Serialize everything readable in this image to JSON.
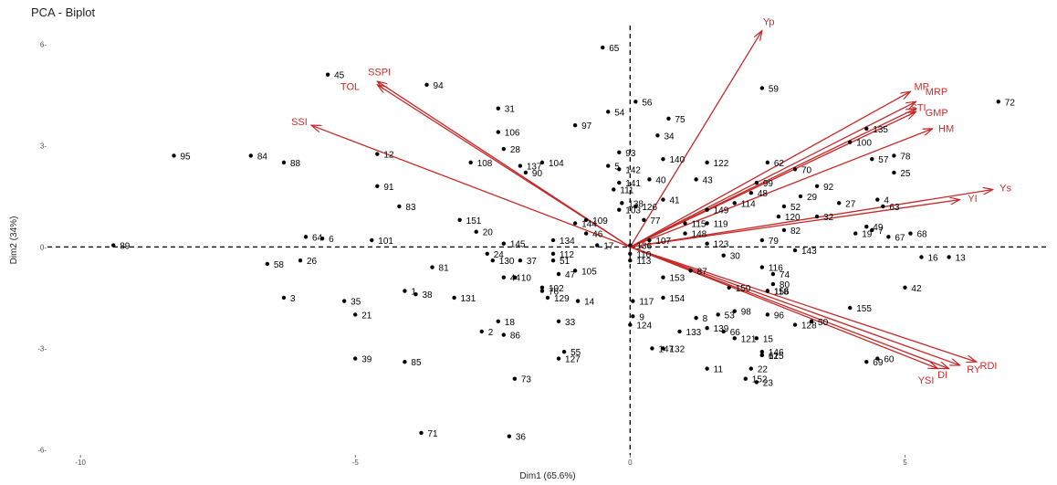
{
  "chart_data": {
    "type": "scatter",
    "title": "PCA - Biplot",
    "xlabel": "Dim1 (65.6%)",
    "ylabel": "Dim2 (34%)",
    "xlim": [
      -10.6,
      7.6
    ],
    "ylim": [
      -6.15,
      6.55
    ],
    "xticks": [
      -10,
      -5,
      0,
      5
    ],
    "yticks": [
      -6,
      -3,
      0,
      3,
      6
    ],
    "tick_labels": {
      "x": [
        "-10",
        "-5",
        "0",
        "5"
      ],
      "y": [
        "-6-",
        "-3-",
        "0-",
        "3-",
        "6-"
      ]
    },
    "grid": "none",
    "reference_lines": {
      "x": 0,
      "y": 0,
      "style": "dashed"
    },
    "colors": {
      "points": "#000000",
      "vectors": "#c62828",
      "vector_labels": "#cc2b2b"
    },
    "points": [
      {
        "label": "1",
        "x": -4.1,
        "y": -1.3
      },
      {
        "label": "2",
        "x": -2.7,
        "y": -2.5
      },
      {
        "label": "3",
        "x": -6.3,
        "y": -1.5
      },
      {
        "label": "4",
        "x": 4.5,
        "y": 1.4
      },
      {
        "label": "5",
        "x": -0.4,
        "y": 2.4
      },
      {
        "label": "6",
        "x": -5.6,
        "y": 0.25
      },
      {
        "label": "7",
        "x": 4.4,
        "y": 0.5
      },
      {
        "label": "8",
        "x": 1.2,
        "y": -2.1
      },
      {
        "label": "9",
        "x": 0.05,
        "y": -2.05
      },
      {
        "label": "10",
        "x": -2.1,
        "y": -0.9
      },
      {
        "label": "11",
        "x": 1.4,
        "y": -3.6
      },
      {
        "label": "12",
        "x": -4.6,
        "y": 2.75
      },
      {
        "label": "13",
        "x": 5.8,
        "y": -0.3
      },
      {
        "label": "14",
        "x": -0.95,
        "y": -1.6
      },
      {
        "label": "15",
        "x": 2.3,
        "y": -2.7
      },
      {
        "label": "16",
        "x": 5.3,
        "y": -0.3
      },
      {
        "label": "17",
        "x": -0.6,
        "y": 0.05
      },
      {
        "label": "18",
        "x": -2.4,
        "y": -2.2
      },
      {
        "label": "19",
        "x": 4.1,
        "y": 0.4
      },
      {
        "label": "20",
        "x": -2.8,
        "y": 0.45
      },
      {
        "label": "21",
        "x": -5.0,
        "y": -2.0
      },
      {
        "label": "22",
        "x": 2.2,
        "y": -3.6
      },
      {
        "label": "23",
        "x": 2.3,
        "y": -4.0
      },
      {
        "label": "24",
        "x": -2.6,
        "y": -0.2
      },
      {
        "label": "25",
        "x": 4.8,
        "y": 2.2
      },
      {
        "label": "26",
        "x": -6.0,
        "y": -0.4
      },
      {
        "label": "27",
        "x": 3.8,
        "y": 1.3
      },
      {
        "label": "28",
        "x": -2.3,
        "y": 2.9
      },
      {
        "label": "29",
        "x": 3.1,
        "y": 1.5
      },
      {
        "label": "30",
        "x": 1.7,
        "y": -0.25
      },
      {
        "label": "31",
        "x": -2.4,
        "y": 4.1
      },
      {
        "label": "32",
        "x": 3.4,
        "y": 0.9
      },
      {
        "label": "33",
        "x": -1.3,
        "y": -2.2
      },
      {
        "label": "34",
        "x": 0.5,
        "y": 3.3
      },
      {
        "label": "35",
        "x": -5.2,
        "y": -1.6
      },
      {
        "label": "36",
        "x": -2.2,
        "y": -5.6
      },
      {
        "label": "37",
        "x": -2.0,
        "y": -0.4
      },
      {
        "label": "38",
        "x": -3.9,
        "y": -1.4
      },
      {
        "label": "39",
        "x": -5.0,
        "y": -3.3
      },
      {
        "label": "40",
        "x": 0.35,
        "y": 2.0
      },
      {
        "label": "41",
        "x": 0.6,
        "y": 1.4
      },
      {
        "label": "42",
        "x": 5.0,
        "y": -1.2
      },
      {
        "label": "43",
        "x": 1.2,
        "y": 2.0
      },
      {
        "label": "44",
        "x": -2.3,
        "y": -0.9
      },
      {
        "label": "45",
        "x": -5.5,
        "y": 5.1
      },
      {
        "label": "46",
        "x": -0.8,
        "y": 0.4
      },
      {
        "label": "47",
        "x": -1.3,
        "y": -0.8
      },
      {
        "label": "48",
        "x": 2.2,
        "y": 1.6
      },
      {
        "label": "49",
        "x": 4.3,
        "y": 0.6
      },
      {
        "label": "50",
        "x": 3.3,
        "y": -2.2
      },
      {
        "label": "51",
        "x": -1.4,
        "y": -0.4
      },
      {
        "label": "52",
        "x": 2.8,
        "y": 1.2
      },
      {
        "label": "53",
        "x": 1.6,
        "y": -2.0
      },
      {
        "label": "54",
        "x": -0.4,
        "y": 4.0
      },
      {
        "label": "55",
        "x": -1.2,
        "y": -3.1
      },
      {
        "label": "56",
        "x": 0.1,
        "y": 4.3
      },
      {
        "label": "57",
        "x": 4.4,
        "y": 2.6
      },
      {
        "label": "58",
        "x": -6.6,
        "y": -0.5
      },
      {
        "label": "59",
        "x": 2.4,
        "y": 4.7
      },
      {
        "label": "60",
        "x": 4.5,
        "y": -3.3
      },
      {
        "label": "61",
        "x": 2.4,
        "y": -3.2
      },
      {
        "label": "62",
        "x": 2.5,
        "y": 2.5
      },
      {
        "label": "63",
        "x": 4.6,
        "y": 1.2
      },
      {
        "label": "64",
        "x": -5.9,
        "y": 0.3
      },
      {
        "label": "65",
        "x": -0.5,
        "y": 5.9
      },
      {
        "label": "66",
        "x": 1.7,
        "y": -2.5
      },
      {
        "label": "67",
        "x": 4.7,
        "y": 0.3
      },
      {
        "label": "68",
        "x": 5.1,
        "y": 0.4
      },
      {
        "label": "69",
        "x": 4.3,
        "y": -3.4
      },
      {
        "label": "70",
        "x": 3.0,
        "y": 2.3
      },
      {
        "label": "71",
        "x": -3.8,
        "y": -5.5
      },
      {
        "label": "72",
        "x": 6.7,
        "y": 4.3
      },
      {
        "label": "73",
        "x": -2.1,
        "y": -3.9
      },
      {
        "label": "74",
        "x": 2.6,
        "y": -0.8
      },
      {
        "label": "75",
        "x": 0.7,
        "y": 3.8
      },
      {
        "label": "76",
        "x": -1.6,
        "y": -1.3
      },
      {
        "label": "77",
        "x": 0.25,
        "y": 0.8
      },
      {
        "label": "78",
        "x": 4.8,
        "y": 2.7
      },
      {
        "label": "79",
        "x": 2.4,
        "y": 0.2
      },
      {
        "label": "80",
        "x": 2.6,
        "y": -1.1
      },
      {
        "label": "81",
        "x": -3.6,
        "y": -0.6
      },
      {
        "label": "82",
        "x": 2.8,
        "y": 0.5
      },
      {
        "label": "83",
        "x": -4.2,
        "y": 1.2
      },
      {
        "label": "84",
        "x": -6.9,
        "y": 2.7
      },
      {
        "label": "85",
        "x": -4.1,
        "y": -3.4
      },
      {
        "label": "86",
        "x": -2.3,
        "y": -2.6
      },
      {
        "label": "87",
        "x": 1.1,
        "y": -0.7
      },
      {
        "label": "88",
        "x": -6.3,
        "y": 2.5
      },
      {
        "label": "89",
        "x": -9.4,
        "y": 0.05
      },
      {
        "label": "90",
        "x": -1.9,
        "y": 2.2
      },
      {
        "label": "91",
        "x": -4.6,
        "y": 1.8
      },
      {
        "label": "92",
        "x": 3.4,
        "y": 1.8
      },
      {
        "label": "93",
        "x": -0.2,
        "y": 2.8
      },
      {
        "label": "94",
        "x": -3.7,
        "y": 4.8
      },
      {
        "label": "95",
        "x": -8.3,
        "y": 2.7
      },
      {
        "label": "96",
        "x": 2.5,
        "y": -2.0
      },
      {
        "label": "97",
        "x": -1.0,
        "y": 3.6
      },
      {
        "label": "98",
        "x": 1.9,
        "y": -1.9
      },
      {
        "label": "99",
        "x": 2.3,
        "y": 1.9
      },
      {
        "label": "100",
        "x": 4.0,
        "y": 3.1
      },
      {
        "label": "101",
        "x": -4.7,
        "y": 0.2
      },
      {
        "label": "102",
        "x": -1.6,
        "y": -1.2
      },
      {
        "label": "103",
        "x": -0.2,
        "y": 1.1
      },
      {
        "label": "104",
        "x": -1.6,
        "y": 2.5
      },
      {
        "label": "105",
        "x": -1.0,
        "y": -0.7
      },
      {
        "label": "106",
        "x": -2.4,
        "y": 3.4
      },
      {
        "label": "107",
        "x": 0.35,
        "y": 0.2
      },
      {
        "label": "108",
        "x": -2.9,
        "y": 2.5
      },
      {
        "label": "109",
        "x": -0.8,
        "y": 0.8
      },
      {
        "label": "110",
        "x": 0.0,
        "y": -0.2
      },
      {
        "label": "111",
        "x": -0.3,
        "y": 1.7
      },
      {
        "label": "112",
        "x": -1.4,
        "y": -0.2
      },
      {
        "label": "113",
        "x": 0.0,
        "y": -0.4
      },
      {
        "label": "114",
        "x": 1.9,
        "y": 1.3
      },
      {
        "label": "115",
        "x": 1.0,
        "y": 0.7
      },
      {
        "label": "116",
        "x": 2.4,
        "y": -0.6
      },
      {
        "label": "117",
        "x": 0.05,
        "y": -1.6
      },
      {
        "label": "118",
        "x": 2.5,
        "y": -1.3
      },
      {
        "label": "119",
        "x": 1.4,
        "y": 0.7
      },
      {
        "label": "120",
        "x": 2.7,
        "y": 0.9
      },
      {
        "label": "121",
        "x": 1.9,
        "y": -2.7
      },
      {
        "label": "122",
        "x": 1.4,
        "y": 2.5
      },
      {
        "label": "123",
        "x": 1.4,
        "y": 0.1
      },
      {
        "label": "124",
        "x": 0.0,
        "y": -2.3
      },
      {
        "label": "125",
        "x": 2.4,
        "y": -3.2
      },
      {
        "label": "126",
        "x": 0.1,
        "y": 1.2
      },
      {
        "label": "127",
        "x": -1.3,
        "y": -3.3
      },
      {
        "label": "128",
        "x": 3.0,
        "y": -2.3
      },
      {
        "label": "129",
        "x": -1.5,
        "y": -1.5
      },
      {
        "label": "130",
        "x": -2.5,
        "y": -0.4
      },
      {
        "label": "131",
        "x": -3.2,
        "y": -1.5
      },
      {
        "label": "132",
        "x": 0.6,
        "y": -3.0
      },
      {
        "label": "133",
        "x": 0.9,
        "y": -2.5
      },
      {
        "label": "134",
        "x": -1.4,
        "y": 0.2
      },
      {
        "label": "135",
        "x": 4.3,
        "y": 3.5
      },
      {
        "label": "136",
        "x": 0.0,
        "y": 0.05
      },
      {
        "label": "137",
        "x": -2.0,
        "y": 2.4
      },
      {
        "label": "138",
        "x": -0.15,
        "y": 1.3
      },
      {
        "label": "139",
        "x": 1.4,
        "y": -2.4
      },
      {
        "label": "140",
        "x": 0.6,
        "y": 2.6
      },
      {
        "label": "141",
        "x": -0.2,
        "y": 1.9
      },
      {
        "label": "142",
        "x": -0.2,
        "y": 2.3
      },
      {
        "label": "143",
        "x": 3.0,
        "y": -0.1
      },
      {
        "label": "144",
        "x": -1.0,
        "y": 0.7
      },
      {
        "label": "145",
        "x": -2.3,
        "y": 0.1
      },
      {
        "label": "146",
        "x": 2.4,
        "y": -3.1
      },
      {
        "label": "147",
        "x": 0.4,
        "y": -3.0
      },
      {
        "label": "148",
        "x": 1.0,
        "y": 0.4
      },
      {
        "label": "149",
        "x": 1.4,
        "y": 1.1
      },
      {
        "label": "150",
        "x": 1.8,
        "y": -1.2
      },
      {
        "label": "151",
        "x": -3.1,
        "y": 0.8
      },
      {
        "label": "152",
        "x": 2.1,
        "y": -3.9
      },
      {
        "label": "153",
        "x": 0.6,
        "y": -0.9
      },
      {
        "label": "154",
        "x": 0.6,
        "y": -1.5
      },
      {
        "label": "155",
        "x": 4.0,
        "y": -1.8
      },
      {
        "label": "156",
        "x": 2.5,
        "y": -1.3
      }
    ],
    "vectors": [
      {
        "label": "Yp",
        "x": 2.4,
        "y": 6.4
      },
      {
        "label": "SSPI",
        "x": -4.6,
        "y": 4.9
      },
      {
        "label": "TOL",
        "x": -4.6,
        "y": 4.8
      },
      {
        "label": "SSI",
        "x": -5.8,
        "y": 3.6
      },
      {
        "label": "MP",
        "x": 5.1,
        "y": 4.6
      },
      {
        "label": "MRP",
        "x": 5.2,
        "y": 4.3
      },
      {
        "label": "STI",
        "x": 5.2,
        "y": 4.1
      },
      {
        "label": "GMP",
        "x": 5.2,
        "y": 4.0
      },
      {
        "label": "HM",
        "x": 5.5,
        "y": 3.5
      },
      {
        "label": "Ys",
        "x": 6.6,
        "y": 1.7
      },
      {
        "label": "YI",
        "x": 6.0,
        "y": 1.4
      },
      {
        "label": "RDI",
        "x": 6.3,
        "y": -3.4
      },
      {
        "label": "RY",
        "x": 6.0,
        "y": -3.5
      },
      {
        "label": "DI",
        "x": 5.8,
        "y": -3.6
      },
      {
        "label": "YSI",
        "x": 5.6,
        "y": -3.6
      }
    ]
  }
}
